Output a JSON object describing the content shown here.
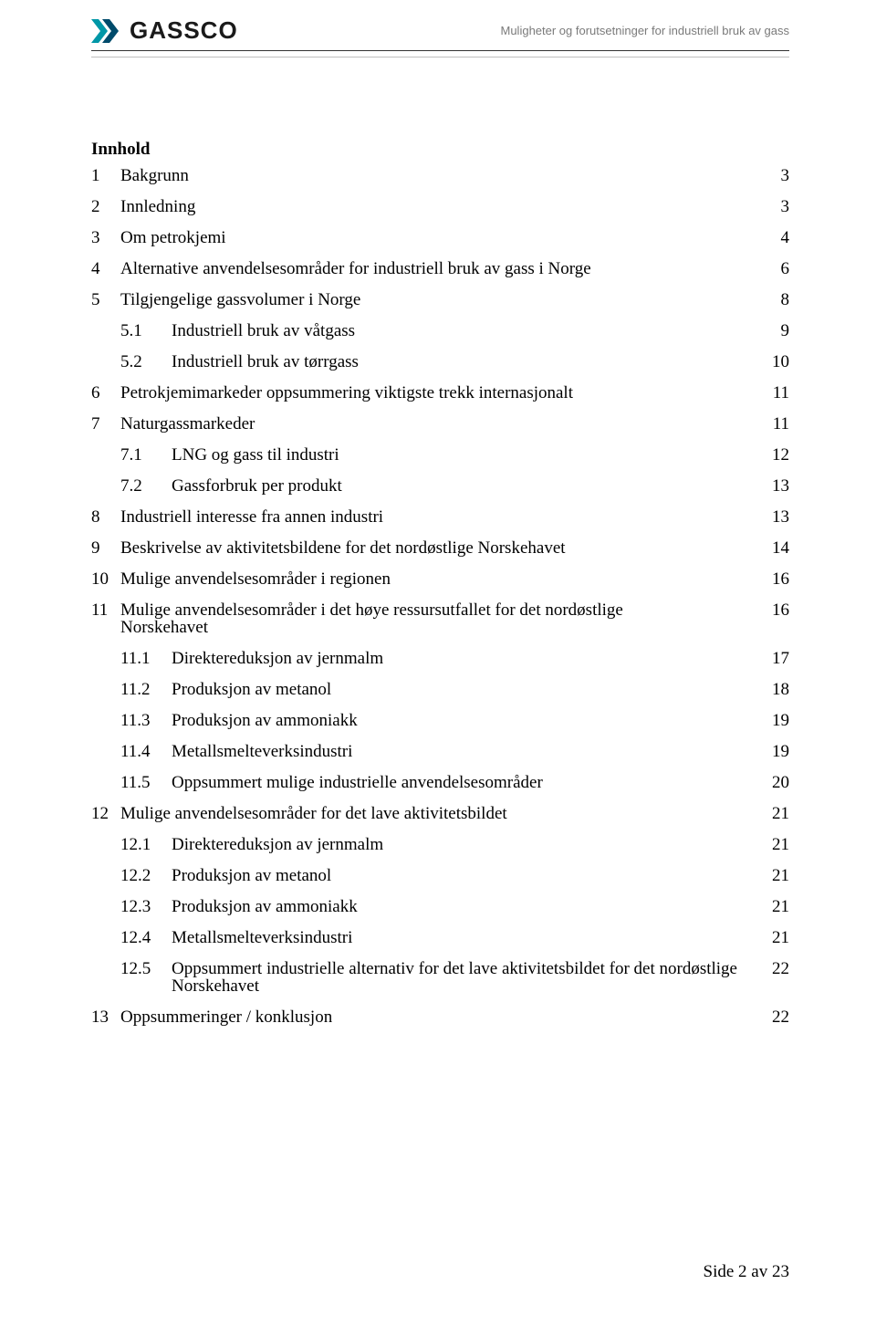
{
  "header": {
    "logo_text": "GASSCO",
    "caption": "Muligheter og forutsetninger for industriell bruk av gass",
    "logo_colors": {
      "chevron1": "#0097a7",
      "chevron2": "#004b6b"
    }
  },
  "toc_title": "Innhold",
  "toc": [
    {
      "level": 1,
      "num": "1",
      "title": "Bakgrunn",
      "page": "3"
    },
    {
      "level": 1,
      "num": "2",
      "title": "Innledning",
      "page": "3"
    },
    {
      "level": 1,
      "num": "3",
      "title": "Om petrokjemi",
      "page": "4"
    },
    {
      "level": 1,
      "num": "4",
      "title": "Alternative anvendelsesområder for industriell bruk av gass i Norge",
      "page": "6"
    },
    {
      "level": 1,
      "num": "5",
      "title": "Tilgjengelige gassvolumer i Norge",
      "page": "8"
    },
    {
      "level": 2,
      "num": "5.1",
      "title": "Industriell bruk av våtgass",
      "page": "9"
    },
    {
      "level": 2,
      "num": "5.2",
      "title": "Industriell bruk av tørrgass",
      "page": "10"
    },
    {
      "level": 1,
      "num": "6",
      "title": "Petrokjemimarkeder oppsummering viktigste trekk internasjonalt",
      "page": "11"
    },
    {
      "level": 1,
      "num": "7",
      "title": "Naturgassmarkeder",
      "page": "11"
    },
    {
      "level": 2,
      "num": "7.1",
      "title": "LNG og gass til industri",
      "page": "12"
    },
    {
      "level": 2,
      "num": "7.2",
      "title": "Gassforbruk per produkt",
      "page": "13"
    },
    {
      "level": 1,
      "num": "8",
      "title": "Industriell interesse fra annen industri",
      "page": "13"
    },
    {
      "level": 1,
      "num": "9",
      "title": "Beskrivelse av aktivitetsbildene for det nordøstlige Norskehavet",
      "page": "14"
    },
    {
      "level": 1,
      "num": "10",
      "title": "Mulige anvendelsesområder i regionen",
      "page": "16"
    },
    {
      "level": 1,
      "num": "11",
      "title": "Mulige anvendelsesområder i det høye ressursutfallet for det nordøstlige Norskehavet",
      "page": "16"
    },
    {
      "level": 2,
      "num": "11.1",
      "title": "Direktereduksjon av jernmalm",
      "page": "17"
    },
    {
      "level": 2,
      "num": "11.2",
      "title": "Produksjon av metanol",
      "page": "18"
    },
    {
      "level": 2,
      "num": "11.3",
      "title": "Produksjon av ammoniakk",
      "page": "19"
    },
    {
      "level": 2,
      "num": "11.4",
      "title": "Metallsmelteverksindustri",
      "page": "19"
    },
    {
      "level": 2,
      "num": "11.5",
      "title": "Oppsummert mulige industrielle anvendelsesområder",
      "page": "20"
    },
    {
      "level": 1,
      "num": "12",
      "title": "Mulige anvendelsesområder for  det lave aktivitetsbildet",
      "page": "21"
    },
    {
      "level": 2,
      "num": "12.1",
      "title": "Direktereduksjon av jernmalm",
      "page": "21"
    },
    {
      "level": 2,
      "num": "12.2",
      "title": "Produksjon av metanol",
      "page": "21"
    },
    {
      "level": 2,
      "num": "12.3",
      "title": "Produksjon av ammoniakk",
      "page": "21"
    },
    {
      "level": 2,
      "num": "12.4",
      "title": "Metallsmelteverksindustri",
      "page": "21"
    },
    {
      "level": 2,
      "num": "12.5",
      "title": "Oppsummert industrielle alternativ for det lave aktivitetsbildet for det nordøstlige Norskehavet",
      "page": "22"
    },
    {
      "level": 1,
      "num": "13",
      "title": "Oppsummeringer / konklusjon",
      "page": "22"
    }
  ],
  "footer": "Side 2 av 23"
}
